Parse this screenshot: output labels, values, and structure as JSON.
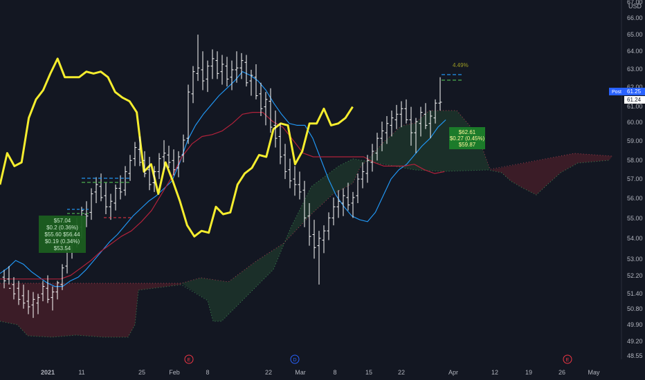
{
  "chart_data": {
    "type": "ohlc",
    "currency": "USD",
    "y_ticks": [
      "67.00",
      "66.00",
      "65.00",
      "64.00",
      "63.00",
      "62.00",
      "61.00",
      "60.00",
      "59.00",
      "58.00",
      "57.00",
      "56.00",
      "55.00",
      "54.00",
      "53.00",
      "52.20",
      "51.40",
      "50.80",
      "49.90",
      "49.20",
      "48.55"
    ],
    "x_ticks": [
      "2021",
      "11",
      "25",
      "Feb",
      "8",
      "22",
      "Mar",
      "8",
      "15",
      "22",
      "Apr",
      "12",
      "19",
      "26",
      "May"
    ],
    "ylim": [
      48.3,
      67.0
    ],
    "grid": false,
    "price_tags": [
      {
        "label": "Post",
        "value": "61.25",
        "color": "#2962ff"
      },
      {
        "value": "61.24",
        "color": "#ffffff"
      }
    ],
    "annotations": {
      "box_left": {
        "lines": [
          "$57.04",
          "$0.2 (0.36%)",
          "$55.60 $56.44",
          "$0.19 (0.34%)",
          "$53.54"
        ]
      },
      "box_right": {
        "lines": [
          "$62.61",
          "$0.27 (0.45%)",
          "$59.87"
        ]
      },
      "percent_label": "4.49%"
    },
    "event_markers": [
      {
        "label": "E",
        "color": "#f23645"
      },
      {
        "label": "D",
        "color": "#2962ff"
      },
      {
        "label": "E",
        "color": "#f23645"
      }
    ],
    "series": [
      {
        "kind": "ohlc",
        "color": "#ffffff",
        "bars": [
          [
            51.8,
            52.2,
            51.2,
            51.6
          ],
          [
            51.7,
            52.4,
            51.4,
            51.2
          ],
          [
            51.4,
            51.8,
            50.6,
            50.9
          ],
          [
            51.2,
            51.6,
            50.3,
            50.6
          ],
          [
            50.8,
            51.4,
            50.1,
            50.4
          ],
          [
            50.5,
            51.1,
            49.8,
            50.2
          ],
          [
            50.3,
            51.0,
            49.6,
            50.6
          ],
          [
            50.4,
            50.9,
            49.8,
            50.7
          ],
          [
            50.9,
            51.6,
            50.5,
            51.3
          ],
          [
            51.2,
            51.9,
            50.4,
            50.6
          ],
          [
            50.7,
            51.3,
            50.0,
            51.0
          ],
          [
            51.0,
            51.6,
            50.6,
            51.5
          ],
          [
            51.4,
            52.5,
            51.1,
            52.3
          ],
          [
            52.4,
            53.8,
            52.0,
            53.3
          ],
          [
            53.2,
            54.6,
            52.8,
            54.1
          ],
          [
            54.0,
            55.0,
            53.4,
            54.6
          ],
          [
            54.5,
            55.6,
            53.9,
            55.4
          ],
          [
            55.2,
            55.9,
            54.5,
            55.1
          ],
          [
            55.3,
            56.6,
            54.9,
            56.3
          ],
          [
            56.4,
            57.2,
            55.8,
            56.8
          ],
          [
            56.7,
            57.4,
            55.9,
            56.1
          ],
          [
            56.2,
            56.9,
            55.2,
            55.6
          ],
          [
            55.6,
            56.3,
            54.9,
            55.9
          ],
          [
            55.8,
            56.8,
            55.4,
            56.6
          ],
          [
            56.6,
            57.3,
            56.0,
            56.4
          ],
          [
            56.5,
            57.8,
            56.2,
            57.5
          ],
          [
            57.4,
            58.4,
            57.0,
            58.1
          ],
          [
            58.2,
            59.1,
            57.8,
            58.8
          ],
          [
            58.7,
            59.4,
            57.8,
            58.0
          ],
          [
            58.1,
            58.6,
            57.2,
            57.4
          ],
          [
            57.6,
            58.3,
            56.5,
            56.8
          ],
          [
            56.9,
            57.8,
            56.4,
            57.5
          ],
          [
            57.5,
            58.5,
            57.1,
            58.2
          ],
          [
            58.3,
            59.2,
            57.6,
            58.5
          ],
          [
            58.4,
            58.9,
            57.7,
            58.0
          ],
          [
            58.1,
            58.7,
            57.3,
            57.6
          ],
          [
            57.7,
            58.6,
            57.2,
            58.3
          ],
          [
            58.4,
            59.5,
            58.0,
            59.2
          ],
          [
            59.3,
            62.2,
            59.0,
            61.8
          ],
          [
            61.7,
            63.2,
            61.2,
            62.9
          ],
          [
            62.8,
            64.9,
            62.4,
            63.1
          ],
          [
            63.0,
            64.0,
            61.9,
            62.4
          ],
          [
            62.5,
            63.5,
            61.8,
            63.2
          ],
          [
            63.2,
            64.1,
            62.5,
            63.6
          ],
          [
            63.5,
            64.0,
            62.5,
            62.8
          ],
          [
            62.9,
            63.8,
            62.2,
            63.3
          ],
          [
            63.2,
            63.7,
            62.1,
            62.5
          ],
          [
            62.6,
            63.5,
            61.9,
            63.0
          ],
          [
            63.0,
            64.0,
            62.3,
            63.1
          ],
          [
            63.1,
            63.9,
            62.5,
            63.5
          ],
          [
            63.4,
            63.8,
            62.1,
            62.3
          ],
          [
            62.4,
            63.0,
            61.6,
            62.7
          ],
          [
            62.6,
            63.3,
            61.4,
            61.6
          ],
          [
            61.7,
            62.3,
            60.5,
            60.9
          ],
          [
            61.0,
            61.8,
            60.0,
            61.4
          ],
          [
            61.3,
            62.0,
            59.6,
            59.9
          ],
          [
            60.0,
            60.8,
            58.8,
            59.3
          ],
          [
            59.4,
            60.1,
            57.9,
            58.3
          ],
          [
            58.4,
            59.0,
            57.1,
            57.5
          ],
          [
            57.6,
            58.2,
            56.6,
            57.0
          ],
          [
            57.1,
            57.8,
            56.2,
            56.8
          ],
          [
            56.8,
            57.5,
            56.0,
            56.4
          ],
          [
            56.5,
            57.0,
            54.5,
            55.0
          ],
          [
            55.1,
            55.8,
            53.5,
            54.0
          ],
          [
            54.1,
            54.9,
            52.8,
            53.4
          ],
          [
            53.5,
            54.3,
            51.4,
            53.9
          ],
          [
            53.8,
            54.6,
            53.1,
            54.3
          ],
          [
            54.3,
            55.3,
            53.8,
            55.0
          ],
          [
            55.0,
            56.1,
            54.6,
            55.6
          ],
          [
            55.6,
            56.5,
            55.0,
            55.9
          ],
          [
            55.8,
            56.6,
            55.1,
            56.2
          ],
          [
            56.1,
            56.9,
            55.4,
            55.7
          ],
          [
            55.8,
            56.4,
            55.0,
            56.1
          ],
          [
            56.2,
            57.4,
            55.8,
            57.1
          ],
          [
            57.1,
            58.0,
            56.6,
            57.5
          ],
          [
            57.4,
            58.4,
            56.9,
            58.1
          ],
          [
            58.0,
            59.0,
            57.5,
            58.6
          ],
          [
            58.5,
            59.6,
            58.1,
            59.3
          ],
          [
            59.3,
            60.2,
            58.6,
            59.7
          ],
          [
            59.6,
            60.5,
            59.0,
            60.1
          ],
          [
            60.0,
            60.8,
            59.4,
            60.4
          ],
          [
            60.3,
            61.1,
            59.8,
            60.6
          ],
          [
            60.6,
            61.3,
            59.9,
            60.9
          ],
          [
            60.9,
            61.4,
            60.1,
            60.3
          ],
          [
            60.3,
            61.0,
            58.9,
            59.6
          ],
          [
            59.6,
            60.4,
            58.5,
            60.2
          ],
          [
            60.1,
            61.0,
            59.4,
            60.7
          ],
          [
            60.6,
            61.2,
            59.8,
            60.0
          ],
          [
            60.1,
            60.8,
            59.3,
            60.5
          ],
          [
            60.4,
            61.4,
            60.1,
            61.2
          ],
          [
            61.2,
            62.6,
            60.8,
            61.25
          ]
        ]
      },
      {
        "kind": "line",
        "name": "",
        "color": "#2196f3",
        "values": [
          52.0,
          52.3,
          52.7,
          52.5,
          52.1,
          51.8,
          51.5,
          51.3,
          51.3,
          51.6,
          51.8,
          52.2,
          52.7,
          53.2,
          53.7,
          54.1,
          54.6,
          55.1,
          55.5,
          55.9,
          56.2,
          56.6,
          57.0,
          58.0,
          59.2,
          60.0,
          60.6,
          61.1,
          61.6,
          62.0,
          62.4,
          62.9,
          62.7,
          62.4,
          61.9,
          61.2,
          60.6,
          60.1,
          60.0,
          60.0,
          59.3,
          58.2,
          57.1,
          56.2,
          55.6,
          55.1,
          54.9,
          54.8,
          55.3,
          56.2,
          57.1,
          57.6,
          57.9,
          58.4,
          58.9,
          59.3,
          59.9,
          60.3
        ]
      },
      {
        "kind": "line",
        "name": "",
        "color": "#b2223b",
        "values": [
          51.7,
          51.7,
          51.7,
          51.7,
          51.7,
          51.7,
          51.7,
          51.9,
          52.3,
          52.7,
          53.2,
          53.6,
          54.0,
          54.3,
          54.8,
          55.4,
          56.3,
          57.2,
          58.3,
          59.0,
          59.4,
          59.5,
          59.7,
          60.1,
          60.6,
          60.7,
          60.7,
          60.2,
          59.9,
          59.2,
          58.5,
          58.3,
          58.3,
          58.3,
          58.3,
          58.3,
          58.3,
          58.0,
          57.8,
          57.8,
          57.8,
          57.9,
          57.6,
          57.4,
          57.5
        ]
      },
      {
        "kind": "line",
        "name": "",
        "color": "#f5ed2e",
        "values": [
          56.8,
          58.5,
          57.8,
          58.0,
          60.4,
          61.4,
          61.9,
          62.8,
          63.6,
          62.6,
          62.6,
          62.6,
          62.9,
          62.8,
          62.9,
          62.6,
          61.8,
          61.5,
          61.3,
          60.7,
          57.5,
          57.9,
          56.3,
          58.0,
          57.0,
          55.9,
          54.6,
          54.0,
          54.3,
          54.2,
          55.6,
          55.2,
          55.3,
          56.8,
          57.4,
          57.7,
          58.4,
          58.3,
          59.8,
          60.1,
          60.0,
          57.9,
          58.6,
          60.1,
          60.1,
          60.9,
          60.0,
          60.1,
          60.4,
          61.0
        ]
      }
    ]
  }
}
